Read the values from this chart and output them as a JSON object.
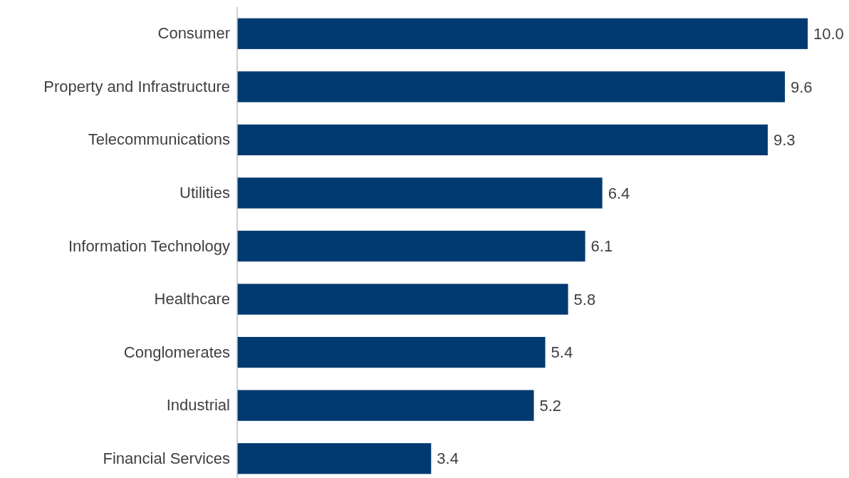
{
  "chart_data": {
    "type": "bar",
    "orientation": "horizontal",
    "categories": [
      "Consumer",
      "Property and Infrastructure",
      "Telecommunications",
      "Utilities",
      "Information Technology",
      "Healthcare",
      "Conglomerates",
      "Industrial",
      "Financial Services"
    ],
    "values": [
      10.0,
      9.6,
      9.3,
      6.4,
      6.1,
      5.8,
      5.4,
      5.2,
      3.4
    ],
    "value_labels": [
      "10.0",
      "9.6",
      "9.3",
      "6.4",
      "6.1",
      "5.8",
      "5.4",
      "5.2",
      "3.4"
    ],
    "color": "#003a70"
  }
}
